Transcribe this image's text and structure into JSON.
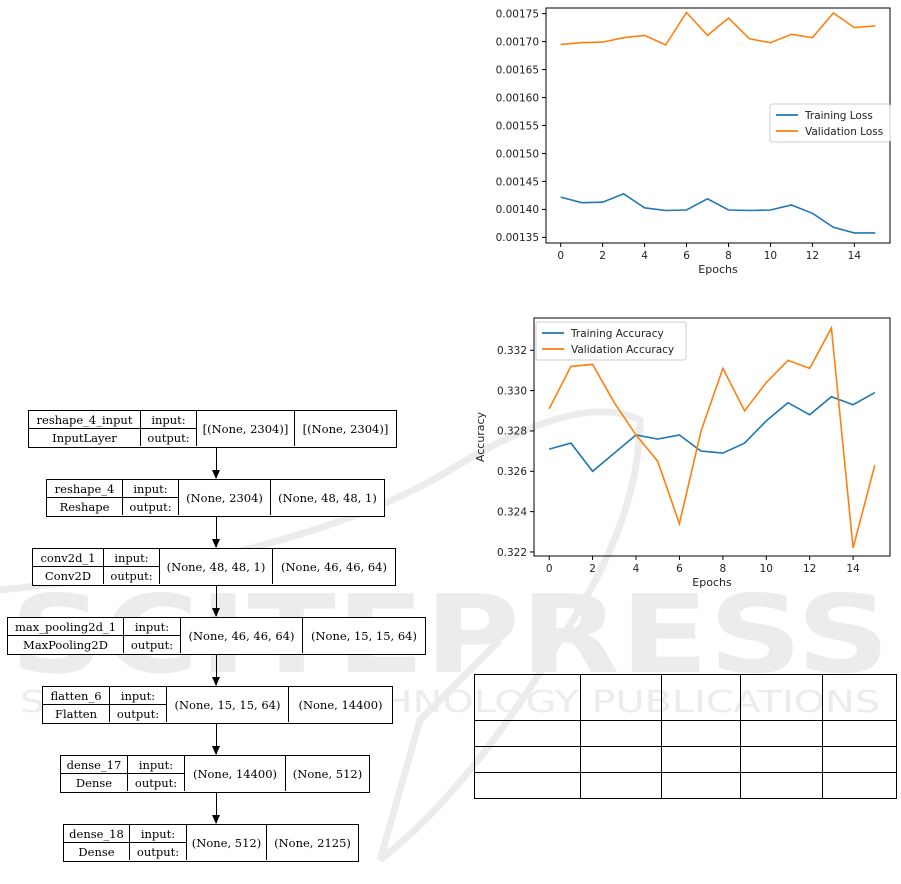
{
  "model_diagram": {
    "input_label": "input:",
    "output_label": "output:",
    "layers": [
      {
        "name": "reshape_4_input",
        "type": "InputLayer",
        "input": "[(None, 2304)]",
        "output": "[(None, 2304)]"
      },
      {
        "name": "reshape_4",
        "type": "Reshape",
        "input": "(None, 2304)",
        "output": "(None, 48, 48, 1)"
      },
      {
        "name": "conv2d_1",
        "type": "Conv2D",
        "input": "(None, 48, 48, 1)",
        "output": "(None, 46, 46, 64)"
      },
      {
        "name": "max_pooling2d_1",
        "type": "MaxPooling2D",
        "input": "(None, 46, 46, 64)",
        "output": "(None, 15, 15, 64)"
      },
      {
        "name": "flatten_6",
        "type": "Flatten",
        "input": "(None, 15, 15, 64)",
        "output": "(None, 14400)"
      },
      {
        "name": "dense_17",
        "type": "Dense",
        "input": "(None, 14400)",
        "output": "(None, 512)"
      },
      {
        "name": "dense_18",
        "type": "Dense",
        "input": "(None, 512)",
        "output": "(None, 2125)"
      }
    ]
  },
  "chart_data": [
    {
      "type": "line",
      "xlabel": "Epochs",
      "ylabel": "",
      "x": [
        0,
        1,
        2,
        3,
        4,
        5,
        6,
        7,
        8,
        9,
        10,
        11,
        12,
        13,
        14,
        15
      ],
      "xticks": [
        "0",
        "2",
        "4",
        "6",
        "8",
        "10",
        "12",
        "14"
      ],
      "yticks": [
        "0.00135",
        "0.00140",
        "0.00145",
        "0.00150",
        "0.00155",
        "0.00160",
        "0.00165",
        "0.00170",
        "0.00175"
      ],
      "ylim": [
        0.00134,
        0.00176
      ],
      "xlim": [
        -0.7,
        15.7
      ],
      "legend_position": "center-right",
      "grid": false,
      "series": [
        {
          "name": "Training Loss",
          "color": "#1f77b4",
          "values": [
            0.001422,
            0.001412,
            0.001413,
            0.001428,
            0.001403,
            0.001398,
            0.001399,
            0.001419,
            0.001399,
            0.001398,
            0.001399,
            0.001408,
            0.001393,
            0.001368,
            0.001358,
            0.001358
          ]
        },
        {
          "name": "Validation Loss",
          "color": "#ff7f0e",
          "values": [
            0.001695,
            0.001698,
            0.001699,
            0.001707,
            0.001711,
            0.001694,
            0.001752,
            0.001711,
            0.001742,
            0.001705,
            0.001698,
            0.001713,
            0.001707,
            0.001751,
            0.001725,
            0.001728
          ]
        }
      ]
    },
    {
      "type": "line",
      "xlabel": "Epochs",
      "ylabel": "Accuracy",
      "x": [
        0,
        1,
        2,
        3,
        4,
        5,
        6,
        7,
        8,
        9,
        10,
        11,
        12,
        13,
        14,
        15
      ],
      "xticks": [
        "0",
        "2",
        "4",
        "6",
        "8",
        "10",
        "12",
        "14"
      ],
      "yticks": [
        "0.322",
        "0.324",
        "0.326",
        "0.328",
        "0.330",
        "0.332"
      ],
      "ylim": [
        0.3218,
        0.3336
      ],
      "xlim": [
        -0.7,
        15.7
      ],
      "legend_position": "upper-left",
      "grid": false,
      "series": [
        {
          "name": "Training Accuracy",
          "color": "#1f77b4",
          "values": [
            0.3271,
            0.3274,
            0.326,
            0.3269,
            0.3278,
            0.3276,
            0.3278,
            0.327,
            0.3269,
            0.3274,
            0.3285,
            0.3294,
            0.3288,
            0.3297,
            0.3293,
            0.3299
          ]
        },
        {
          "name": "Validation Accuracy",
          "color": "#ff7f0e",
          "values": [
            0.3291,
            0.3312,
            0.3313,
            0.3294,
            0.3278,
            0.3265,
            0.3234,
            0.328,
            0.3311,
            0.329,
            0.3304,
            0.3315,
            0.3311,
            0.3331,
            0.3222,
            0.3263
          ]
        }
      ]
    }
  ],
  "table": {
    "columns": 5,
    "rows": 4
  }
}
